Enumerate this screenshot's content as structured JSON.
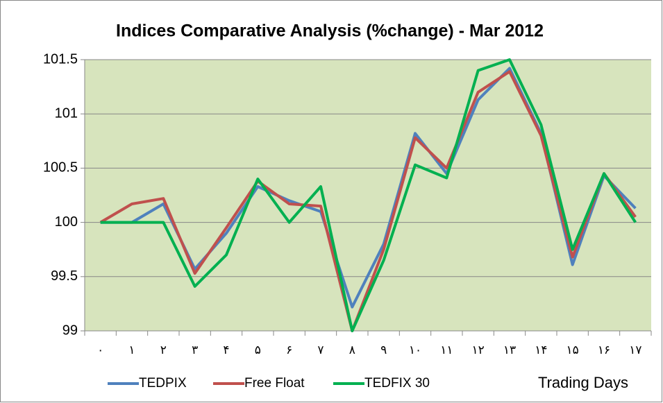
{
  "chart_data": {
    "type": "line",
    "title": "Indices Comparative Analysis (%change) - Mar 2012",
    "x_label": "Trading Days",
    "categories": [
      "۰",
      "۱",
      "۲",
      "۳",
      "۴",
      "۵",
      "۶",
      "۷",
      "۸",
      "۹",
      "۱۰",
      "۱۱",
      "۱۲",
      "۱۳",
      "۱۴",
      "۱۵",
      "۱۶",
      "۱۷"
    ],
    "series": [
      {
        "name": "TEDPIX",
        "color": "#4f81bd",
        "values": [
          100,
          100,
          100.17,
          99.57,
          99.9,
          100.33,
          100.2,
          100.1,
          99.22,
          99.8,
          100.82,
          100.45,
          101.13,
          101.42,
          100.82,
          99.61,
          100.43,
          100.13
        ]
      },
      {
        "name": "Free Float",
        "color": "#c0504d",
        "values": [
          100,
          100.17,
          100.22,
          99.53,
          99.95,
          100.38,
          100.17,
          100.15,
          99.0,
          99.75,
          100.78,
          100.5,
          101.2,
          101.39,
          100.8,
          99.68,
          100.45,
          100.05
        ]
      },
      {
        "name": "TEDFIX 30",
        "color": "#00b050",
        "values": [
          100,
          100,
          100,
          99.41,
          99.7,
          100.4,
          100,
          100.33,
          99.0,
          99.65,
          100.53,
          100.41,
          101.4,
          101.5,
          100.9,
          99.75,
          100.45,
          100
        ]
      }
    ],
    "ylim": [
      99,
      101.5
    ],
    "yticks": [
      99,
      99.5,
      100,
      100.5,
      101,
      101.5
    ],
    "grid": true,
    "legend": "bottom",
    "plot_background": "#d7e4bd"
  }
}
